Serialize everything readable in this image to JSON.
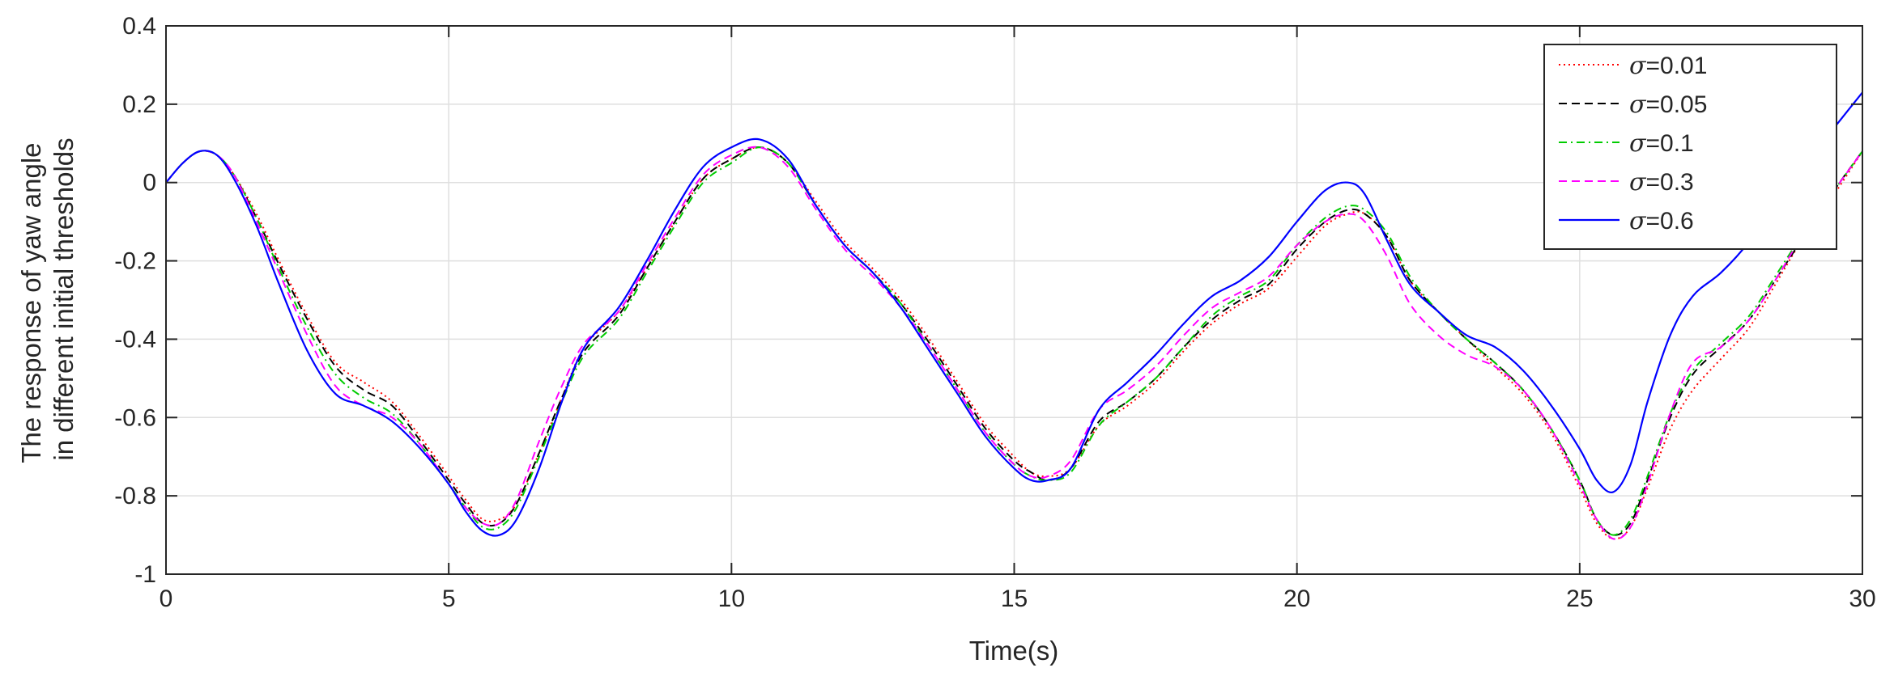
{
  "chart_data": {
    "type": "line",
    "title": "",
    "xlabel": "Time(s)",
    "ylabel": [
      "The response of yaw angle",
      "in different initial thresholds"
    ],
    "xlim": [
      0,
      30
    ],
    "ylim": [
      -1,
      0.4
    ],
    "xticks": [
      0,
      5,
      10,
      15,
      20,
      25,
      30
    ],
    "xtick_labels": [
      "0",
      "5",
      "10",
      "15",
      "20",
      "25",
      "30"
    ],
    "yticks": [
      -1,
      -0.8,
      -0.6,
      -0.4,
      -0.2,
      0,
      0.2,
      0.4
    ],
    "ytick_labels": [
      "-1",
      "-0.8",
      "-0.6",
      "-0.4",
      "-0.2",
      "0",
      "0.2",
      "0.4"
    ],
    "grid": true,
    "legend_position": "top-right",
    "legend_symbol": "σ",
    "series": [
      {
        "name": "=0.01",
        "color": "#ff0000",
        "dash": "dotted",
        "x": [
          0,
          0.3,
          0.6,
          0.9,
          1.2,
          1.6,
          2.0,
          2.5,
          3.0,
          3.5,
          4.0,
          4.5,
          5.0,
          5.3,
          5.6,
          5.9,
          6.2,
          6.6,
          7.0,
          7.4,
          8.0,
          8.5,
          9.0,
          9.5,
          10.0,
          10.5,
          11.0,
          11.5,
          12.0,
          12.5,
          13.0,
          13.5,
          14.0,
          14.5,
          15.0,
          15.3,
          15.6,
          16.0,
          16.5,
          17.0,
          17.5,
          18.0,
          18.5,
          19.0,
          19.5,
          20.0,
          20.5,
          20.9,
          21.2,
          21.6,
          22.0,
          22.5,
          23.0,
          23.5,
          24.0,
          24.5,
          25.0,
          25.3,
          25.6,
          25.9,
          26.2,
          26.6,
          27.0,
          27.5,
          28.0,
          28.5,
          29.0,
          29.5,
          30.0
        ],
        "y": [
          0,
          0.05,
          0.08,
          0.07,
          0.02,
          -0.08,
          -0.2,
          -0.34,
          -0.46,
          -0.51,
          -0.56,
          -0.65,
          -0.75,
          -0.81,
          -0.86,
          -0.86,
          -0.82,
          -0.69,
          -0.55,
          -0.42,
          -0.33,
          -0.22,
          -0.1,
          0.01,
          0.06,
          0.09,
          0.05,
          -0.05,
          -0.15,
          -0.22,
          -0.3,
          -0.4,
          -0.51,
          -0.62,
          -0.7,
          -0.74,
          -0.75,
          -0.73,
          -0.62,
          -0.57,
          -0.51,
          -0.43,
          -0.36,
          -0.31,
          -0.27,
          -0.19,
          -0.11,
          -0.08,
          -0.08,
          -0.14,
          -0.25,
          -0.33,
          -0.4,
          -0.47,
          -0.54,
          -0.64,
          -0.78,
          -0.87,
          -0.91,
          -0.88,
          -0.78,
          -0.63,
          -0.53,
          -0.45,
          -0.37,
          -0.25,
          -0.13,
          -0.03,
          0.08
        ]
      },
      {
        "name": "=0.05",
        "color": "#000000",
        "dash": "dashed",
        "x": [
          0,
          0.3,
          0.6,
          0.9,
          1.2,
          1.6,
          2.0,
          2.5,
          3.0,
          3.5,
          4.0,
          4.5,
          5.0,
          5.3,
          5.6,
          5.9,
          6.2,
          6.6,
          7.0,
          7.4,
          8.0,
          8.5,
          9.0,
          9.5,
          10.0,
          10.5,
          11.0,
          11.5,
          12.0,
          12.5,
          13.0,
          13.5,
          14.0,
          14.5,
          15.0,
          15.3,
          15.6,
          16.0,
          16.5,
          17.0,
          17.5,
          18.0,
          18.5,
          19.0,
          19.5,
          20.0,
          20.5,
          20.9,
          21.2,
          21.6,
          22.0,
          22.5,
          23.0,
          23.5,
          24.0,
          24.5,
          25.0,
          25.3,
          25.6,
          25.9,
          26.2,
          26.6,
          27.0,
          27.5,
          28.0,
          28.5,
          29.0,
          29.5,
          30.0
        ],
        "y": [
          0,
          0.05,
          0.08,
          0.07,
          0.02,
          -0.09,
          -0.21,
          -0.35,
          -0.47,
          -0.53,
          -0.57,
          -0.66,
          -0.76,
          -0.82,
          -0.87,
          -0.87,
          -0.82,
          -0.69,
          -0.55,
          -0.43,
          -0.34,
          -0.22,
          -0.1,
          0.01,
          0.06,
          0.09,
          0.05,
          -0.06,
          -0.16,
          -0.23,
          -0.31,
          -0.41,
          -0.52,
          -0.63,
          -0.71,
          -0.74,
          -0.76,
          -0.73,
          -0.61,
          -0.56,
          -0.5,
          -0.42,
          -0.35,
          -0.3,
          -0.26,
          -0.17,
          -0.1,
          -0.07,
          -0.08,
          -0.14,
          -0.25,
          -0.33,
          -0.4,
          -0.46,
          -0.53,
          -0.63,
          -0.76,
          -0.86,
          -0.9,
          -0.87,
          -0.76,
          -0.6,
          -0.49,
          -0.42,
          -0.35,
          -0.24,
          -0.13,
          -0.02,
          0.08
        ]
      },
      {
        "name": "=0.1",
        "color": "#00cc00",
        "dash": "dashdot",
        "x": [
          0,
          0.3,
          0.6,
          0.9,
          1.2,
          1.6,
          2.0,
          2.5,
          3.0,
          3.5,
          4.0,
          4.5,
          5.0,
          5.3,
          5.6,
          5.9,
          6.2,
          6.6,
          7.0,
          7.4,
          8.0,
          8.5,
          9.0,
          9.5,
          10.0,
          10.5,
          11.0,
          11.5,
          12.0,
          12.5,
          13.0,
          13.5,
          14.0,
          14.5,
          15.0,
          15.3,
          15.6,
          16.0,
          16.5,
          17.0,
          17.5,
          18.0,
          18.5,
          19.0,
          19.5,
          20.0,
          20.5,
          20.9,
          21.2,
          21.6,
          22.0,
          22.5,
          23.0,
          23.5,
          24.0,
          24.5,
          25.0,
          25.3,
          25.6,
          25.9,
          26.2,
          26.6,
          27.0,
          27.5,
          28.0,
          28.5,
          29.0,
          29.5,
          30.0
        ],
        "y": [
          0,
          0.05,
          0.08,
          0.07,
          0.02,
          -0.09,
          -0.22,
          -0.37,
          -0.49,
          -0.55,
          -0.59,
          -0.67,
          -0.77,
          -0.83,
          -0.88,
          -0.88,
          -0.83,
          -0.7,
          -0.56,
          -0.44,
          -0.35,
          -0.23,
          -0.11,
          0,
          0.05,
          0.09,
          0.05,
          -0.06,
          -0.16,
          -0.23,
          -0.31,
          -0.42,
          -0.53,
          -0.64,
          -0.72,
          -0.75,
          -0.76,
          -0.74,
          -0.62,
          -0.56,
          -0.5,
          -0.42,
          -0.34,
          -0.29,
          -0.25,
          -0.16,
          -0.09,
          -0.06,
          -0.07,
          -0.13,
          -0.24,
          -0.33,
          -0.4,
          -0.46,
          -0.53,
          -0.63,
          -0.76,
          -0.86,
          -0.9,
          -0.86,
          -0.75,
          -0.59,
          -0.48,
          -0.41,
          -0.34,
          -0.23,
          -0.12,
          -0.02,
          0.08
        ]
      },
      {
        "name": "=0.3",
        "color": "#ff00ff",
        "dash": "dashed",
        "x": [
          0,
          0.3,
          0.6,
          0.9,
          1.2,
          1.6,
          2.0,
          2.5,
          3.0,
          3.5,
          4.0,
          4.5,
          5.0,
          5.3,
          5.6,
          5.9,
          6.2,
          6.6,
          7.0,
          7.4,
          8.0,
          8.5,
          9.0,
          9.5,
          10.0,
          10.5,
          11.0,
          11.5,
          12.0,
          12.5,
          13.0,
          13.5,
          14.0,
          14.5,
          15.0,
          15.3,
          15.6,
          16.0,
          16.5,
          17.0,
          17.5,
          18.0,
          18.5,
          19.0,
          19.5,
          20.0,
          20.5,
          20.9,
          21.2,
          21.6,
          22.0,
          22.5,
          23.0,
          23.5,
          24.0,
          24.5,
          25.0,
          25.3,
          25.6,
          25.9,
          26.2,
          26.6,
          27.0,
          27.5,
          28.0,
          28.5,
          29.0,
          29.5,
          30.0
        ],
        "y": [
          0,
          0.05,
          0.08,
          0.07,
          0.02,
          -0.1,
          -0.23,
          -0.39,
          -0.52,
          -0.57,
          -0.6,
          -0.67,
          -0.77,
          -0.83,
          -0.87,
          -0.87,
          -0.81,
          -0.66,
          -0.52,
          -0.41,
          -0.33,
          -0.21,
          -0.09,
          0.02,
          0.07,
          0.09,
          0.04,
          -0.07,
          -0.17,
          -0.24,
          -0.32,
          -0.42,
          -0.53,
          -0.64,
          -0.72,
          -0.75,
          -0.75,
          -0.71,
          -0.58,
          -0.53,
          -0.47,
          -0.39,
          -0.32,
          -0.28,
          -0.24,
          -0.16,
          -0.1,
          -0.08,
          -0.1,
          -0.19,
          -0.31,
          -0.39,
          -0.44,
          -0.47,
          -0.53,
          -0.63,
          -0.77,
          -0.86,
          -0.91,
          -0.88,
          -0.77,
          -0.59,
          -0.46,
          -0.42,
          -0.35,
          -0.24,
          -0.12,
          -0.02,
          0.08
        ]
      },
      {
        "name": "=0.6",
        "color": "#0000ff",
        "dash": "solid",
        "x": [
          0,
          0.3,
          0.6,
          0.9,
          1.2,
          1.6,
          2.0,
          2.5,
          3.0,
          3.5,
          4.0,
          4.5,
          5.0,
          5.3,
          5.6,
          5.9,
          6.2,
          6.6,
          7.0,
          7.4,
          8.0,
          8.5,
          9.0,
          9.5,
          10.0,
          10.5,
          11.0,
          11.5,
          12.0,
          12.5,
          13.0,
          13.5,
          14.0,
          14.5,
          15.0,
          15.3,
          15.6,
          16.0,
          16.5,
          17.0,
          17.5,
          18.0,
          18.5,
          19.0,
          19.5,
          20.0,
          20.5,
          20.9,
          21.2,
          21.6,
          22.0,
          22.5,
          23.0,
          23.5,
          24.0,
          24.5,
          25.0,
          25.3,
          25.6,
          25.9,
          26.2,
          26.6,
          27.0,
          27.5,
          28.0,
          28.5,
          29.0,
          29.5,
          30.0
        ],
        "y": [
          0,
          0.05,
          0.08,
          0.07,
          0.01,
          -0.11,
          -0.26,
          -0.43,
          -0.54,
          -0.57,
          -0.61,
          -0.68,
          -0.77,
          -0.84,
          -0.89,
          -0.9,
          -0.86,
          -0.73,
          -0.56,
          -0.42,
          -0.32,
          -0.2,
          -0.07,
          0.04,
          0.09,
          0.11,
          0.06,
          -0.06,
          -0.16,
          -0.23,
          -0.32,
          -0.43,
          -0.54,
          -0.65,
          -0.73,
          -0.76,
          -0.76,
          -0.73,
          -0.58,
          -0.51,
          -0.44,
          -0.36,
          -0.29,
          -0.25,
          -0.19,
          -0.1,
          -0.02,
          0,
          -0.03,
          -0.15,
          -0.26,
          -0.33,
          -0.39,
          -0.42,
          -0.48,
          -0.57,
          -0.68,
          -0.76,
          -0.79,
          -0.72,
          -0.56,
          -0.39,
          -0.29,
          -0.23,
          -0.15,
          -0.04,
          0.05,
          0.14,
          0.23
        ]
      }
    ]
  }
}
